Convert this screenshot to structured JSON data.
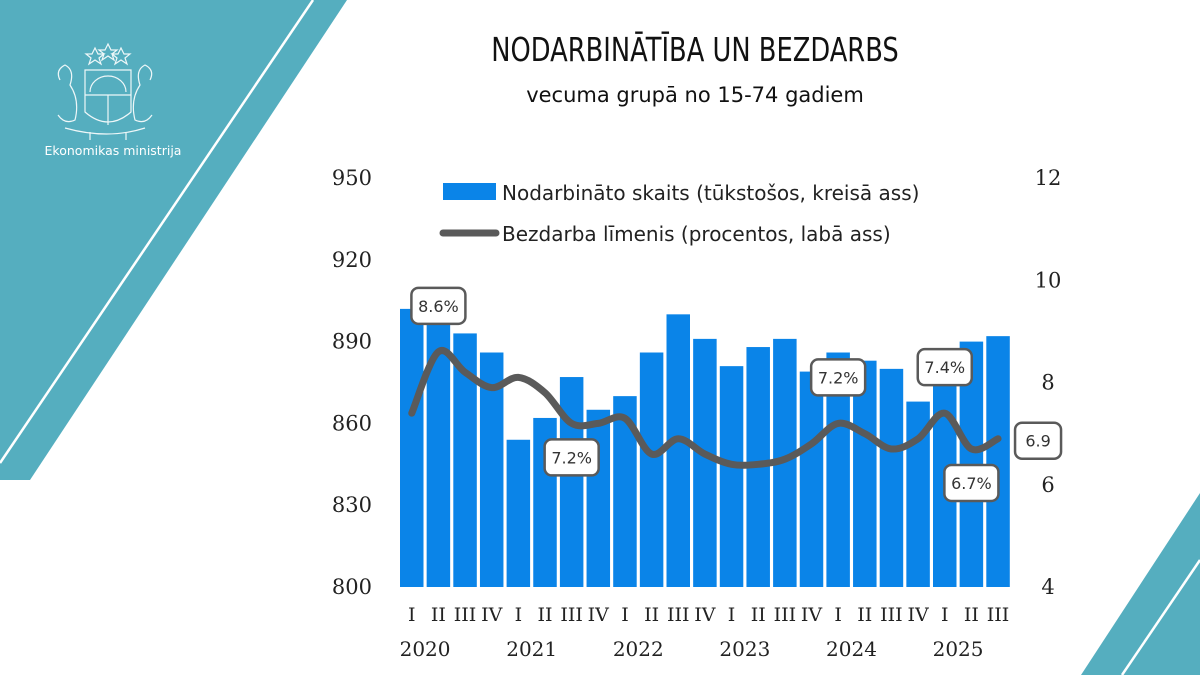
{
  "branding": {
    "ministry": "Ekonomikas ministrija",
    "logo": "latvia-coat-of-arms-icon",
    "accent_color": "#55aebf"
  },
  "header": {
    "title": "NODARBINĀTĪBA UN BEZDARBS",
    "subtitle": "vecuma grupā no 15-74 gadiem"
  },
  "chart_data": {
    "type": "bar",
    "title": "NODARBINĀTĪBA UN BEZDARBS",
    "subtitle": "vecuma grupā no 15-74 gadiem",
    "categories": [
      "2020 I",
      "2020 II",
      "2020 III",
      "2020 IV",
      "2021 I",
      "2021 II",
      "2021 III",
      "2021 IV",
      "2022 I",
      "2022 II",
      "2022 III",
      "2022 IV",
      "2023 I",
      "2023 II",
      "2023 III",
      "2023 IV",
      "2024 I",
      "2024 II",
      "2024 III",
      "2024 IV",
      "2025 I",
      "2025 II",
      "2025 III"
    ],
    "quarter_labels": [
      "I",
      "II",
      "III",
      "IV",
      "I",
      "II",
      "III",
      "IV",
      "I",
      "II",
      "III",
      "IV",
      "I",
      "II",
      "III",
      "IV",
      "I",
      "II",
      "III",
      "IV",
      "I",
      "II",
      "III"
    ],
    "year_labels": [
      "2020",
      "2021",
      "2022",
      "2023",
      "2024",
      "2025"
    ],
    "series": [
      {
        "name": "Nodarbināto skaits (tūkstošos, kreisā ass)",
        "type": "bar",
        "axis": "left",
        "color": "#0a84e8",
        "values": [
          902,
          898,
          893,
          886,
          854,
          862,
          877,
          865,
          870,
          886,
          900,
          891,
          881,
          888,
          891,
          879,
          886,
          883,
          880,
          868,
          876,
          890,
          892
        ]
      },
      {
        "name": "Bezdarba līmenis (procentos, labā ass)",
        "type": "line",
        "axis": "right",
        "color": "#5a5a5a",
        "values": [
          7.4,
          8.6,
          8.2,
          7.9,
          8.1,
          7.8,
          7.2,
          7.2,
          7.3,
          6.6,
          6.9,
          6.6,
          6.4,
          6.4,
          6.5,
          6.8,
          7.2,
          7.0,
          6.7,
          6.9,
          7.4,
          6.7,
          6.9
        ]
      }
    ],
    "annotations": [
      {
        "index": 1,
        "text": "8.6%",
        "position": "above"
      },
      {
        "index": 6,
        "text": "7.2%",
        "position": "below"
      },
      {
        "index": 16,
        "text": "7.2%",
        "position": "above"
      },
      {
        "index": 20,
        "text": "7.4%",
        "position": "above"
      },
      {
        "index": 21,
        "text": "6.7%",
        "position": "below"
      },
      {
        "index": 22,
        "text": "6.9",
        "position": "right"
      }
    ],
    "y_left": {
      "min": 800,
      "max": 950,
      "ticks": [
        800,
        830,
        860,
        890,
        920,
        950
      ]
    },
    "y_right": {
      "min": 4,
      "max": 12,
      "ticks": [
        4,
        6,
        8,
        10,
        12
      ]
    },
    "grid": false,
    "legend": "top"
  }
}
